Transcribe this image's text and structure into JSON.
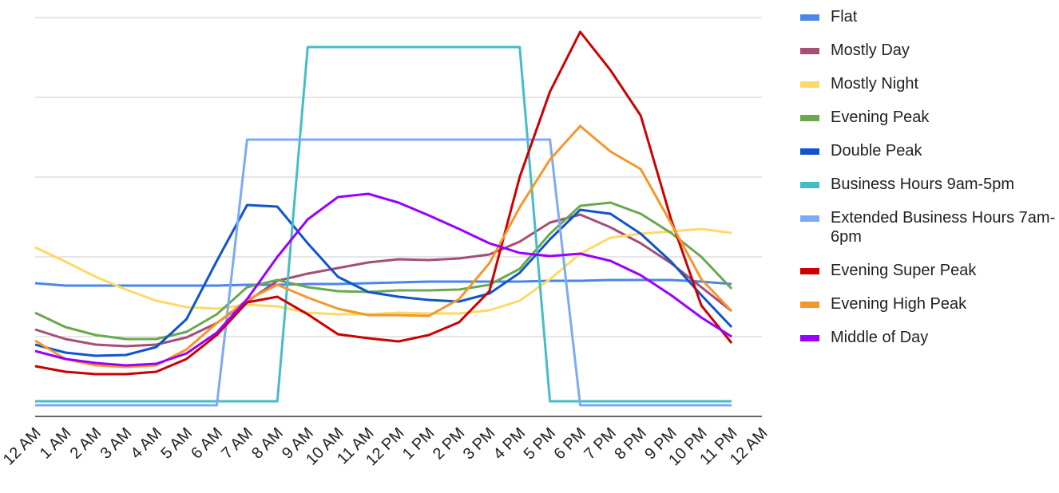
{
  "chart_data": {
    "type": "line",
    "x": [
      0,
      1,
      2,
      3,
      4,
      5,
      6,
      7,
      8,
      9,
      10,
      11,
      12,
      13,
      14,
      15,
      16,
      17,
      18,
      19,
      20,
      21,
      22,
      23
    ],
    "xlim": [
      0,
      24
    ],
    "xticks": [
      {
        "value": 0,
        "label": "12 AM"
      },
      {
        "value": 1,
        "label": "1 AM"
      },
      {
        "value": 2,
        "label": "2 AM"
      },
      {
        "value": 3,
        "label": "3 AM"
      },
      {
        "value": 4,
        "label": "4 AM"
      },
      {
        "value": 5,
        "label": "5 AM"
      },
      {
        "value": 6,
        "label": "6 AM"
      },
      {
        "value": 7,
        "label": "7 AM"
      },
      {
        "value": 8,
        "label": "8 AM"
      },
      {
        "value": 9,
        "label": "9 AM"
      },
      {
        "value": 10,
        "label": "10 AM"
      },
      {
        "value": 11,
        "label": "11 AM"
      },
      {
        "value": 12,
        "label": "12 PM"
      },
      {
        "value": 13,
        "label": "1 PM"
      },
      {
        "value": 14,
        "label": "2 PM"
      },
      {
        "value": 15,
        "label": "3 PM"
      },
      {
        "value": 16,
        "label": "4 PM"
      },
      {
        "value": 17,
        "label": "5 PM"
      },
      {
        "value": 18,
        "label": "6 PM"
      },
      {
        "value": 19,
        "label": "7 PM"
      },
      {
        "value": 20,
        "label": "8 PM"
      },
      {
        "value": 21,
        "label": "9 PM"
      },
      {
        "value": 22,
        "label": "10 PM"
      },
      {
        "value": 23,
        "label": "11 PM"
      },
      {
        "value": 24,
        "label": "12 AM"
      }
    ],
    "ylim": [
      0,
      5
    ],
    "yticks": [
      1,
      2,
      3,
      4,
      5
    ],
    "grid": true,
    "legend": "right",
    "series": [
      {
        "name": "Flat",
        "color": "#4a86e8",
        "values": [
          1.67,
          1.64,
          1.64,
          1.64,
          1.64,
          1.64,
          1.64,
          1.65,
          1.65,
          1.66,
          1.66,
          1.67,
          1.68,
          1.69,
          1.69,
          1.69,
          1.69,
          1.7,
          1.7,
          1.71,
          1.71,
          1.71,
          1.69,
          1.66
        ]
      },
      {
        "name": "Mostly Day",
        "color": "#a64d79",
        "values": [
          1.09,
          0.97,
          0.9,
          0.88,
          0.9,
          0.99,
          1.17,
          1.44,
          1.7,
          1.79,
          1.86,
          1.93,
          1.97,
          1.96,
          1.98,
          2.03,
          2.19,
          2.43,
          2.53,
          2.37,
          2.17,
          1.92,
          1.62,
          1.32
        ]
      },
      {
        "name": "Mostly Night",
        "color": "#ffd966",
        "values": [
          2.12,
          1.94,
          1.75,
          1.59,
          1.45,
          1.37,
          1.35,
          1.4,
          1.38,
          1.3,
          1.28,
          1.28,
          1.3,
          1.29,
          1.29,
          1.33,
          1.45,
          1.72,
          2.04,
          2.24,
          2.29,
          2.32,
          2.35,
          2.3
        ]
      },
      {
        "name": "Evening Peak",
        "color": "#6aa84f",
        "values": [
          1.3,
          1.12,
          1.02,
          0.97,
          0.97,
          1.06,
          1.28,
          1.62,
          1.71,
          1.62,
          1.57,
          1.56,
          1.58,
          1.58,
          1.59,
          1.65,
          1.85,
          2.29,
          2.64,
          2.68,
          2.54,
          2.3,
          2.0,
          1.6
        ]
      },
      {
        "name": "Double Peak",
        "color": "#1155cc",
        "values": [
          0.9,
          0.8,
          0.76,
          0.77,
          0.87,
          1.22,
          1.95,
          2.65,
          2.63,
          2.17,
          1.75,
          1.56,
          1.5,
          1.46,
          1.44,
          1.54,
          1.8,
          2.22,
          2.59,
          2.54,
          2.29,
          1.94,
          1.52,
          1.12
        ]
      },
      {
        "name": "Business Hours 9am-5pm",
        "color": "#46bdc6",
        "values": [
          0.19,
          0.19,
          0.19,
          0.19,
          0.19,
          0.19,
          0.19,
          0.19,
          0.19,
          4.63,
          4.63,
          4.63,
          4.63,
          4.63,
          4.63,
          4.63,
          4.63,
          0.19,
          0.19,
          0.19,
          0.19,
          0.19,
          0.19,
          0.19
        ]
      },
      {
        "name": "Extended Business Hours 7am-6pm",
        "color": "#7baaf7",
        "values": [
          0.14,
          0.14,
          0.14,
          0.14,
          0.14,
          0.14,
          0.14,
          3.47,
          3.47,
          3.47,
          3.47,
          3.47,
          3.47,
          3.47,
          3.47,
          3.47,
          3.47,
          3.47,
          0.14,
          0.14,
          0.14,
          0.14,
          0.14,
          0.14
        ]
      },
      {
        "name": "Evening Super Peak",
        "color": "#cc0000",
        "values": [
          0.63,
          0.56,
          0.53,
          0.53,
          0.56,
          0.72,
          1.02,
          1.43,
          1.5,
          1.28,
          1.03,
          0.98,
          0.94,
          1.02,
          1.18,
          1.57,
          3.0,
          4.07,
          4.82,
          4.34,
          3.77,
          2.47,
          1.39,
          0.92
        ]
      },
      {
        "name": "Evening High Peak",
        "color": "#f6962b",
        "values": [
          0.95,
          0.72,
          0.64,
          0.62,
          0.64,
          0.84,
          1.17,
          1.46,
          1.65,
          1.49,
          1.35,
          1.27,
          1.27,
          1.26,
          1.47,
          1.92,
          2.62,
          3.22,
          3.64,
          3.32,
          3.1,
          2.42,
          1.72,
          1.32
        ]
      },
      {
        "name": "Middle of Day",
        "color": "#9900ff",
        "values": [
          0.82,
          0.72,
          0.67,
          0.64,
          0.66,
          0.79,
          1.05,
          1.47,
          2.0,
          2.47,
          2.75,
          2.79,
          2.68,
          2.52,
          2.35,
          2.17,
          2.05,
          2.01,
          2.04,
          1.95,
          1.77,
          1.52,
          1.24,
          1.0
        ]
      }
    ]
  }
}
